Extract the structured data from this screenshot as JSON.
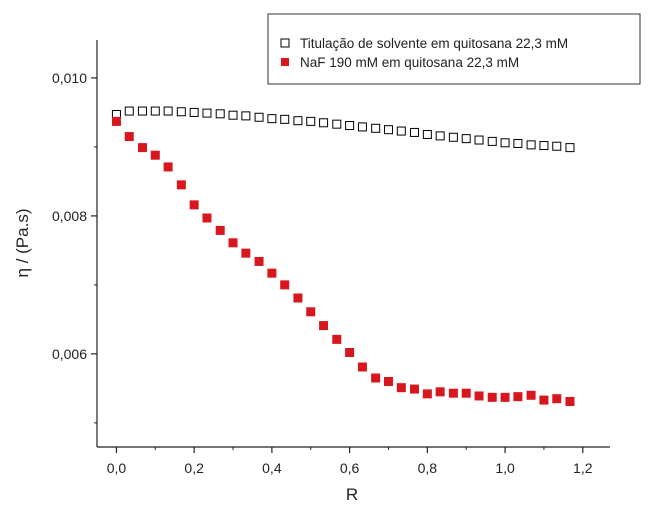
{
  "chart_data": {
    "type": "scatter",
    "xlabel": "R",
    "ylabel": "η / (Pa.s)",
    "xlim": [
      -0.05,
      1.27
    ],
    "ylim": [
      0.00465,
      0.01055
    ],
    "xticks": [
      0.0,
      0.2,
      0.4,
      0.6,
      0.8,
      1.0,
      1.2
    ],
    "xtick_labels": [
      "0,0",
      "0,2",
      "0,4",
      "0,6",
      "0,8",
      "1,0",
      "1,2"
    ],
    "yticks": [
      0.006,
      0.008,
      0.01
    ],
    "ytick_labels": [
      "0,006",
      "0,008",
      "0,010"
    ],
    "grid": false,
    "legend_position": "top-right",
    "series": [
      {
        "name": "Titulação de solvente em quitosana 22,3 mM",
        "marker": "hollow-square",
        "color": "#000000",
        "x": [
          0.0,
          0.033,
          0.067,
          0.1,
          0.133,
          0.167,
          0.2,
          0.233,
          0.267,
          0.3,
          0.333,
          0.367,
          0.4,
          0.433,
          0.467,
          0.5,
          0.533,
          0.567,
          0.6,
          0.633,
          0.667,
          0.7,
          0.733,
          0.767,
          0.8,
          0.833,
          0.867,
          0.9,
          0.933,
          0.967,
          1.0,
          1.033,
          1.067,
          1.1,
          1.133,
          1.167
        ],
        "y": [
          0.00947,
          0.00952,
          0.00952,
          0.00952,
          0.00952,
          0.00951,
          0.0095,
          0.00949,
          0.00948,
          0.00946,
          0.00945,
          0.00943,
          0.00941,
          0.0094,
          0.00938,
          0.00937,
          0.00935,
          0.00933,
          0.00931,
          0.00929,
          0.00927,
          0.00925,
          0.00923,
          0.00921,
          0.00918,
          0.00916,
          0.00914,
          0.00912,
          0.0091,
          0.00908,
          0.00906,
          0.00905,
          0.00903,
          0.00902,
          0.00901,
          0.00899
        ]
      },
      {
        "name": "NaF 190 mM em quitosana 22,3 mM",
        "marker": "filled-square",
        "color": "#d8161e",
        "x": [
          0.0,
          0.033,
          0.067,
          0.1,
          0.133,
          0.167,
          0.2,
          0.233,
          0.267,
          0.3,
          0.333,
          0.367,
          0.4,
          0.433,
          0.467,
          0.5,
          0.533,
          0.567,
          0.6,
          0.633,
          0.667,
          0.7,
          0.733,
          0.767,
          0.8,
          0.833,
          0.867,
          0.9,
          0.933,
          0.967,
          1.0,
          1.033,
          1.067,
          1.1,
          1.133,
          1.167
        ],
        "y": [
          0.00937,
          0.00915,
          0.00899,
          0.00888,
          0.00871,
          0.00845,
          0.00816,
          0.00797,
          0.00779,
          0.00761,
          0.00746,
          0.00734,
          0.00717,
          0.007,
          0.00681,
          0.00661,
          0.00641,
          0.00621,
          0.00602,
          0.00581,
          0.00565,
          0.0056,
          0.00551,
          0.00549,
          0.00542,
          0.00545,
          0.00543,
          0.00543,
          0.00539,
          0.00537,
          0.00537,
          0.00538,
          0.0054,
          0.00533,
          0.00535,
          0.00531
        ]
      }
    ]
  }
}
